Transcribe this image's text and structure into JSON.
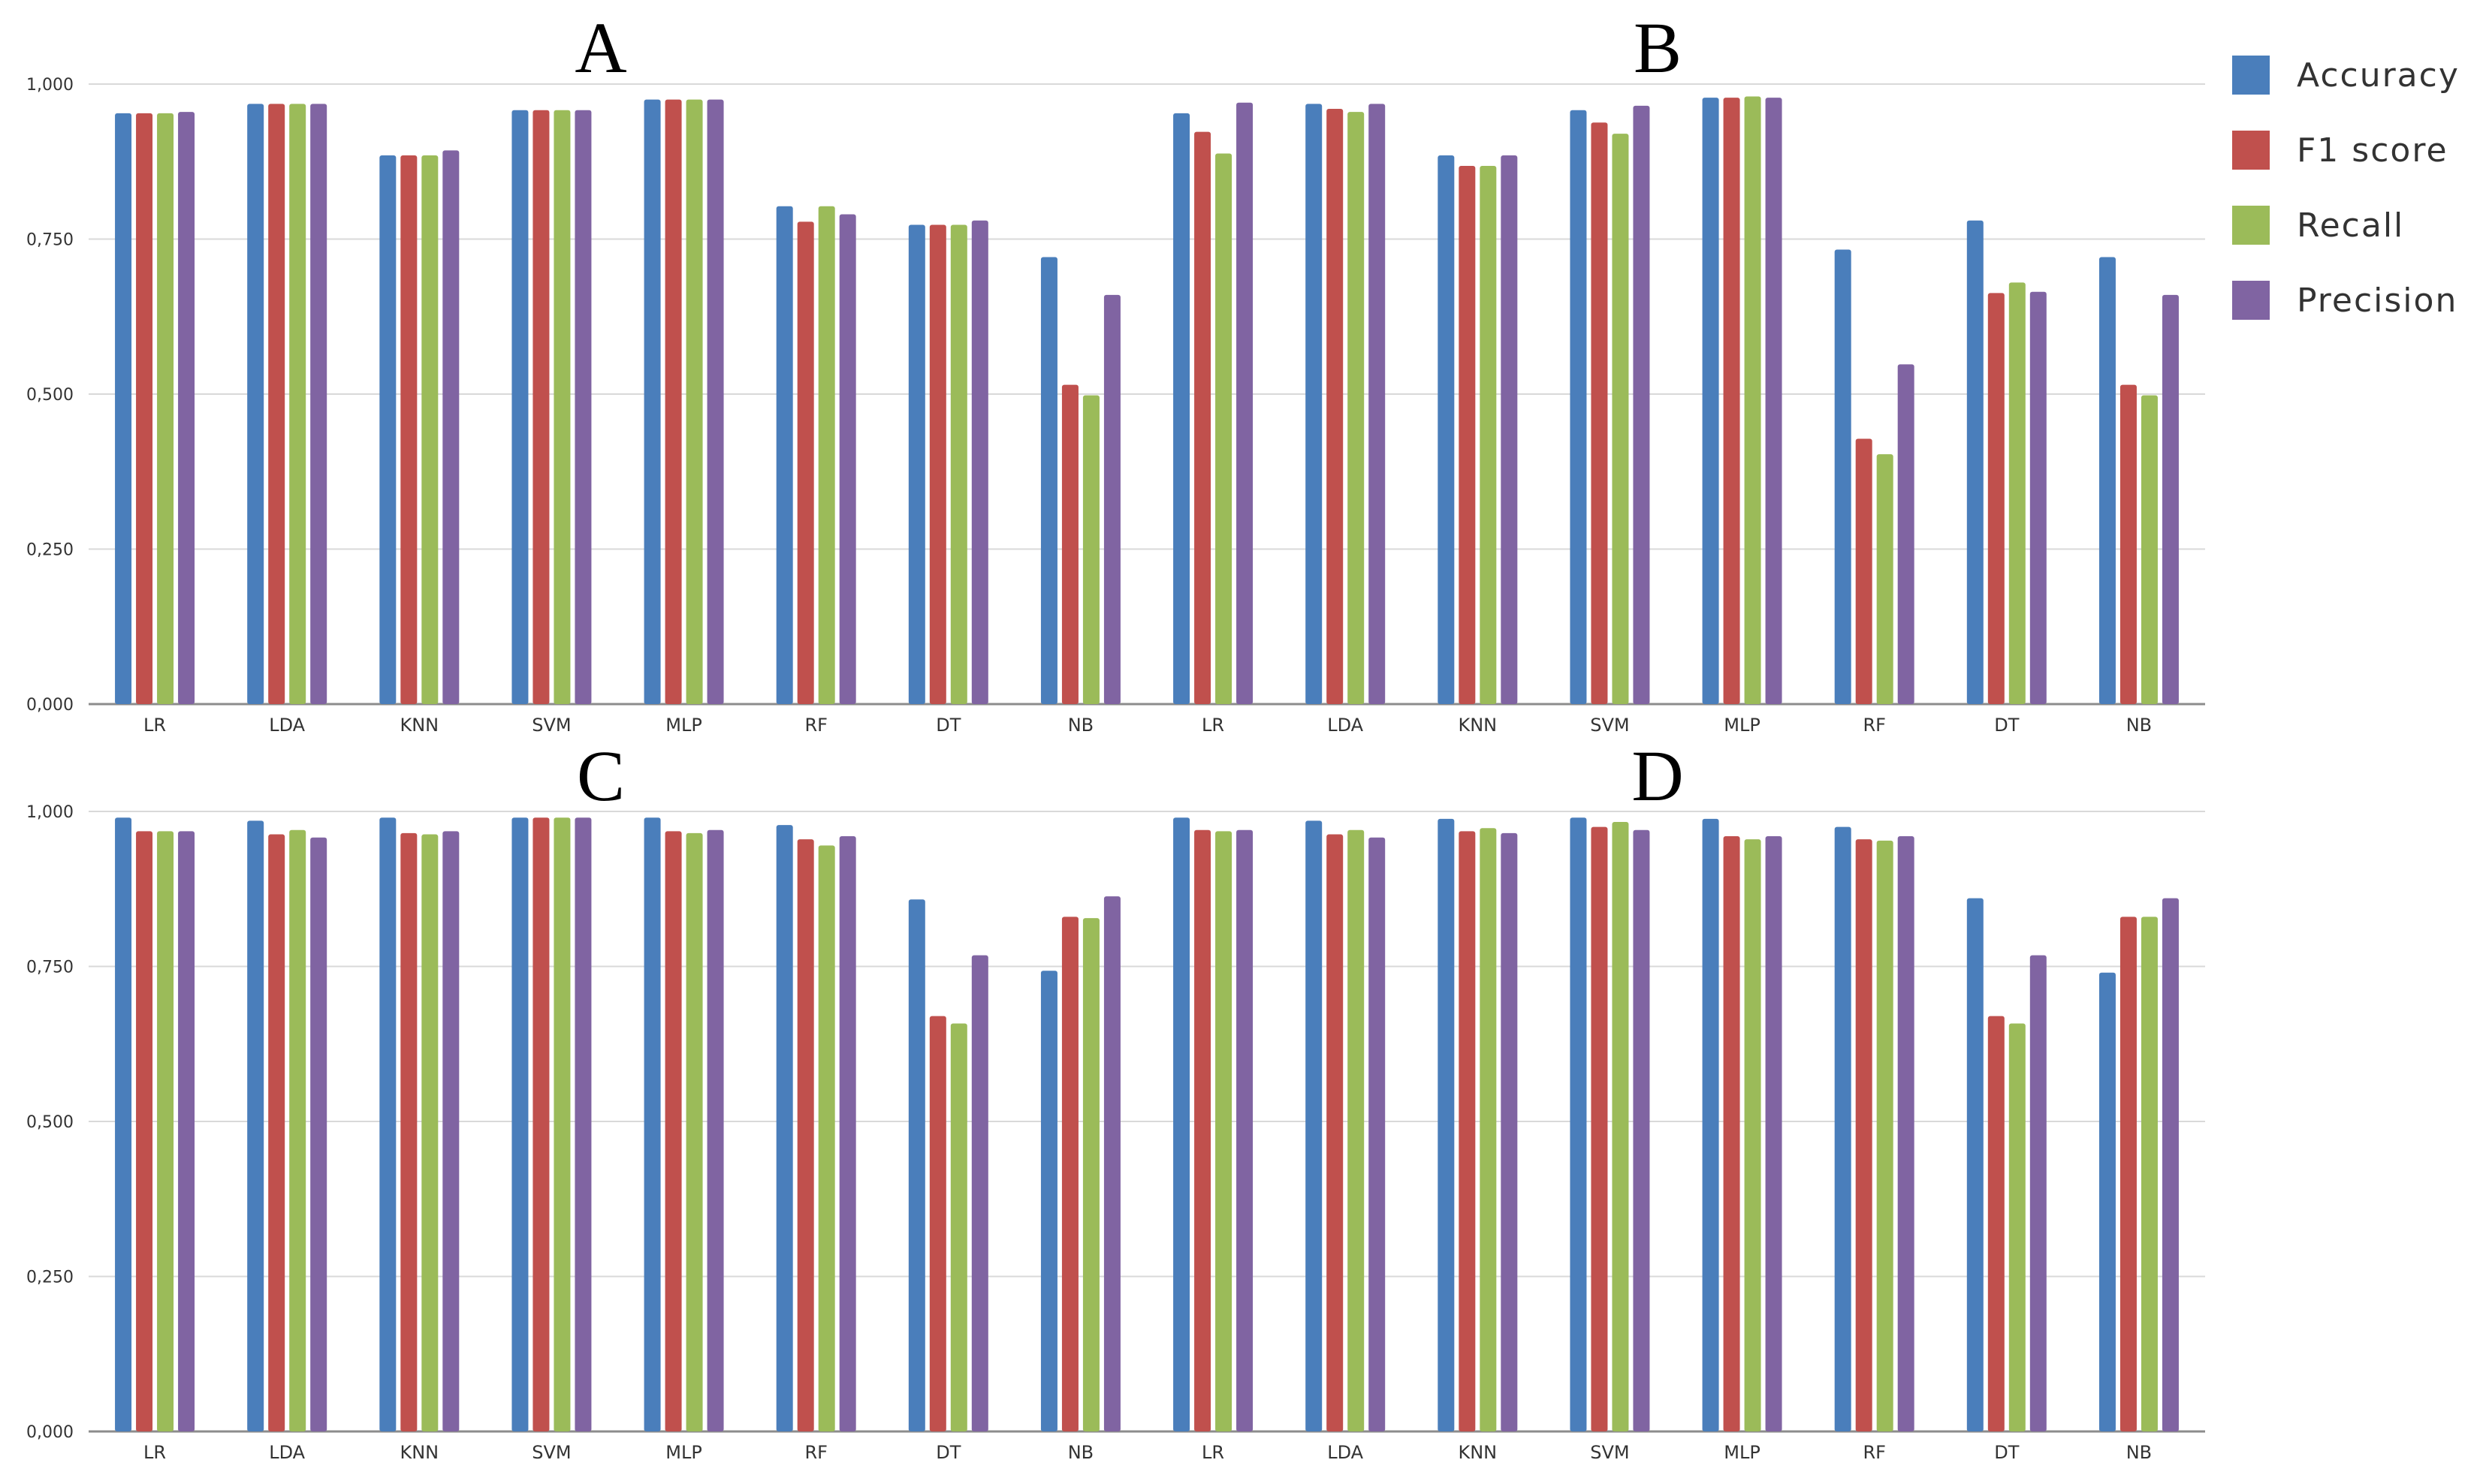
{
  "legend": {
    "placement": "right",
    "items": [
      {
        "label": "Accuracy",
        "color": "#4a7ebb"
      },
      {
        "label": "F1 score",
        "color": "#c0504d"
      },
      {
        "label": "Recall",
        "color": "#9bbb59"
      },
      {
        "label": "Precision",
        "color": "#8064a2"
      }
    ]
  },
  "y_tick_labels": [
    "0,000",
    "0,250",
    "0,500",
    "0,750",
    "1,000"
  ],
  "chart_data": [
    {
      "type": "bar",
      "title": "",
      "grid": true,
      "ylim": [
        0,
        1
      ],
      "categories": [
        "LR",
        "LDA",
        "KNN",
        "SVM",
        "MLP",
        "RF",
        "DT",
        "NB",
        "LR",
        "LDA",
        "KNN",
        "SVM",
        "MLP",
        "RF",
        "DT",
        "NB"
      ],
      "series": [
        {
          "name": "Accuracy",
          "values": [
            0.953,
            0.968,
            0.885,
            0.958,
            0.975,
            0.803,
            0.773,
            0.721,
            0.953,
            0.968,
            0.885,
            0.958,
            0.978,
            0.733,
            0.78,
            0.721
          ]
        },
        {
          "name": "F1 score",
          "values": [
            0.953,
            0.968,
            0.885,
            0.958,
            0.975,
            0.778,
            0.773,
            0.515,
            0.923,
            0.96,
            0.868,
            0.938,
            0.978,
            0.428,
            0.663,
            0.515
          ]
        },
        {
          "name": "Recall",
          "values": [
            0.953,
            0.968,
            0.885,
            0.958,
            0.975,
            0.803,
            0.773,
            0.498,
            0.888,
            0.955,
            0.868,
            0.92,
            0.98,
            0.403,
            0.68,
            0.498
          ]
        },
        {
          "name": "Precision",
          "values": [
            0.955,
            0.968,
            0.893,
            0.958,
            0.975,
            0.79,
            0.78,
            0.66,
            0.97,
            0.968,
            0.885,
            0.965,
            0.978,
            0.548,
            0.665,
            0.66
          ]
        }
      ],
      "panel_labels": [
        {
          "text": "A",
          "over": "left half"
        },
        {
          "text": "B",
          "over": "right half"
        }
      ]
    },
    {
      "type": "bar",
      "title": "",
      "grid": true,
      "ylim": [
        0,
        1
      ],
      "categories": [
        "LR",
        "LDA",
        "KNN",
        "SVM",
        "MLP",
        "RF",
        "DT",
        "NB",
        "LR",
        "LDA",
        "KNN",
        "SVM",
        "MLP",
        "RF",
        "DT",
        "NB"
      ],
      "series": [
        {
          "name": "Accuracy",
          "values": [
            0.99,
            0.985,
            0.99,
            0.99,
            0.99,
            0.978,
            0.858,
            0.743,
            0.99,
            0.985,
            0.988,
            0.99,
            0.988,
            0.975,
            0.86,
            0.74
          ]
        },
        {
          "name": "F1 score",
          "values": [
            0.968,
            0.963,
            0.965,
            0.99,
            0.968,
            0.955,
            0.67,
            0.83,
            0.97,
            0.963,
            0.968,
            0.975,
            0.96,
            0.955,
            0.67,
            0.83
          ]
        },
        {
          "name": "Recall",
          "values": [
            0.968,
            0.97,
            0.963,
            0.99,
            0.965,
            0.945,
            0.658,
            0.828,
            0.968,
            0.97,
            0.973,
            0.983,
            0.955,
            0.953,
            0.658,
            0.83
          ]
        },
        {
          "name": "Precision",
          "values": [
            0.968,
            0.958,
            0.968,
            0.99,
            0.97,
            0.96,
            0.768,
            0.863,
            0.97,
            0.958,
            0.965,
            0.97,
            0.96,
            0.96,
            0.768,
            0.86
          ]
        }
      ],
      "panel_labels": [
        {
          "text": "C",
          "over": "left half"
        },
        {
          "text": "D",
          "over": "right half"
        }
      ]
    }
  ]
}
